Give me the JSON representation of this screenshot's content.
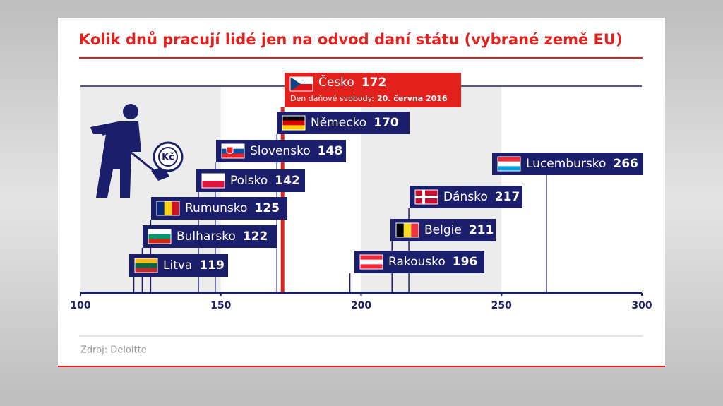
{
  "chart_data": {
    "type": "lollipop",
    "title": "Kolik dnů pracují lidé jen na odvod daní státu (vybrané země EU)",
    "annotation": "Den daňové svobody:",
    "annotation_date": "20. června 2016",
    "source": "Zdroj: Deloitte",
    "categories": [
      "Česko",
      "Německo",
      "Slovensko",
      "Polsko",
      "Rumunsko",
      "Bulharsko",
      "Litva",
      "Lucembursko",
      "Dánsko",
      "Belgie",
      "Rakousko"
    ],
    "values": [
      172,
      170,
      148,
      142,
      125,
      122,
      119,
      266,
      217,
      211,
      196
    ],
    "color": "#1b1f6b",
    "highlight_color": "#e2211c",
    "xlim": [
      100,
      300
    ],
    "xticks": [
      100,
      150,
      200,
      250,
      300
    ],
    "bands": true
  }
}
